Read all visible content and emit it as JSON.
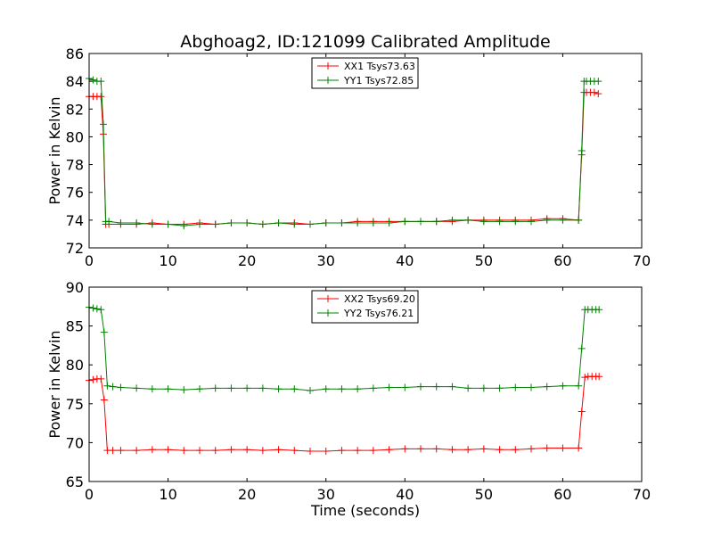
{
  "chart_data": [
    {
      "type": "line",
      "title": "Abghoag2, ID:121099 Calibrated Amplitude",
      "xlabel": "",
      "ylabel": "Power in Kelvin",
      "xlim": [
        0,
        70
      ],
      "ylim": [
        72,
        86
      ],
      "xticks": [
        0,
        10,
        20,
        30,
        40,
        50,
        60,
        70
      ],
      "yticks": [
        72,
        74,
        76,
        78,
        80,
        82,
        84,
        86
      ],
      "legend_position": "top-center",
      "marker": "plus",
      "grid": false,
      "series": [
        {
          "name": "XX1 Tsys73.63",
          "color": "#ff0000",
          "x": [
            0,
            0.5,
            1,
            1.5,
            1.8,
            2.1,
            2.5,
            4,
            6,
            8,
            10,
            12,
            14,
            16,
            18,
            20,
            22,
            24,
            26,
            28,
            30,
            32,
            34,
            36,
            38,
            40,
            42,
            44,
            46,
            48,
            50,
            52,
            54,
            56,
            58,
            60,
            62,
            62.4,
            62.7,
            63,
            63.5,
            64,
            64.5
          ],
          "y": [
            82.9,
            82.9,
            82.9,
            82.9,
            80.2,
            73.7,
            73.7,
            73.7,
            73.7,
            73.8,
            73.7,
            73.7,
            73.8,
            73.7,
            73.8,
            73.8,
            73.7,
            73.8,
            73.8,
            73.7,
            73.8,
            73.8,
            73.9,
            73.9,
            73.9,
            73.9,
            73.9,
            73.9,
            73.9,
            74.0,
            74.0,
            74.0,
            74.0,
            74.0,
            74.1,
            74.1,
            74.0,
            78.7,
            83.2,
            83.2,
            83.2,
            83.2,
            83.1
          ]
        },
        {
          "name": "YY1 Tsys72.85",
          "color": "#008000",
          "x": [
            0,
            0.5,
            1,
            1.5,
            1.8,
            2.1,
            2.5,
            4,
            6,
            8,
            10,
            12,
            14,
            16,
            18,
            20,
            22,
            24,
            26,
            28,
            30,
            32,
            34,
            36,
            38,
            40,
            42,
            44,
            46,
            48,
            50,
            52,
            54,
            56,
            58,
            60,
            62,
            62.4,
            62.7,
            63,
            63.5,
            64,
            64.5
          ],
          "y": [
            84.2,
            84.1,
            84.0,
            84.0,
            80.9,
            73.9,
            73.9,
            73.8,
            73.8,
            73.7,
            73.7,
            73.6,
            73.7,
            73.7,
            73.8,
            73.8,
            73.7,
            73.8,
            73.7,
            73.7,
            73.8,
            73.8,
            73.8,
            73.8,
            73.8,
            73.9,
            73.9,
            73.9,
            74.0,
            74.0,
            73.9,
            73.9,
            73.9,
            73.9,
            74.0,
            74.0,
            74.0,
            79.0,
            84.0,
            84.0,
            84.0,
            84.0,
            84.0
          ]
        }
      ]
    },
    {
      "type": "line",
      "title": "",
      "xlabel": "Time (seconds)",
      "ylabel": "Power in Kelvin",
      "xlim": [
        0,
        70
      ],
      "ylim": [
        65,
        90
      ],
      "xticks": [
        0,
        10,
        20,
        30,
        40,
        50,
        60,
        70
      ],
      "yticks": [
        65,
        70,
        75,
        80,
        85,
        90
      ],
      "legend_position": "top-center",
      "marker": "plus",
      "grid": false,
      "series": [
        {
          "name": "XX2 Tsys69.20",
          "color": "#ff0000",
          "x": [
            0,
            0.5,
            1,
            1.5,
            1.9,
            2.3,
            3,
            4,
            6,
            8,
            10,
            12,
            14,
            16,
            18,
            20,
            22,
            24,
            26,
            28,
            30,
            32,
            34,
            36,
            38,
            40,
            42,
            44,
            46,
            48,
            50,
            52,
            54,
            56,
            58,
            60,
            62,
            62.4,
            62.8,
            63.2,
            63.7,
            64.2,
            64.6
          ],
          "y": [
            78.0,
            78.1,
            78.2,
            78.2,
            75.5,
            69.0,
            69.0,
            69.0,
            69.0,
            69.1,
            69.1,
            69.0,
            69.0,
            69.0,
            69.1,
            69.1,
            69.0,
            69.1,
            69.0,
            68.9,
            68.9,
            69.0,
            69.0,
            69.0,
            69.1,
            69.2,
            69.2,
            69.2,
            69.1,
            69.1,
            69.2,
            69.1,
            69.1,
            69.2,
            69.3,
            69.3,
            69.3,
            74.0,
            78.4,
            78.5,
            78.5,
            78.5,
            78.5
          ]
        },
        {
          "name": "YY2 Tsys76.21",
          "color": "#008000",
          "x": [
            0,
            0.5,
            1,
            1.5,
            1.9,
            2.3,
            3,
            4,
            6,
            8,
            10,
            12,
            14,
            16,
            18,
            20,
            22,
            24,
            26,
            28,
            30,
            32,
            34,
            36,
            38,
            40,
            42,
            44,
            46,
            48,
            50,
            52,
            54,
            56,
            58,
            60,
            62,
            62.4,
            62.8,
            63.2,
            63.7,
            64.2,
            64.6
          ],
          "y": [
            87.4,
            87.3,
            87.2,
            87.1,
            84.2,
            77.3,
            77.2,
            77.1,
            77.0,
            76.9,
            76.9,
            76.8,
            76.9,
            77.0,
            77.0,
            77.0,
            77.0,
            76.9,
            76.9,
            76.7,
            76.9,
            76.9,
            76.9,
            77.0,
            77.1,
            77.1,
            77.2,
            77.2,
            77.2,
            77.0,
            77.0,
            77.0,
            77.1,
            77.1,
            77.2,
            77.3,
            77.3,
            82.1,
            87.1,
            87.1,
            87.1,
            87.1,
            87.1
          ]
        }
      ]
    }
  ]
}
